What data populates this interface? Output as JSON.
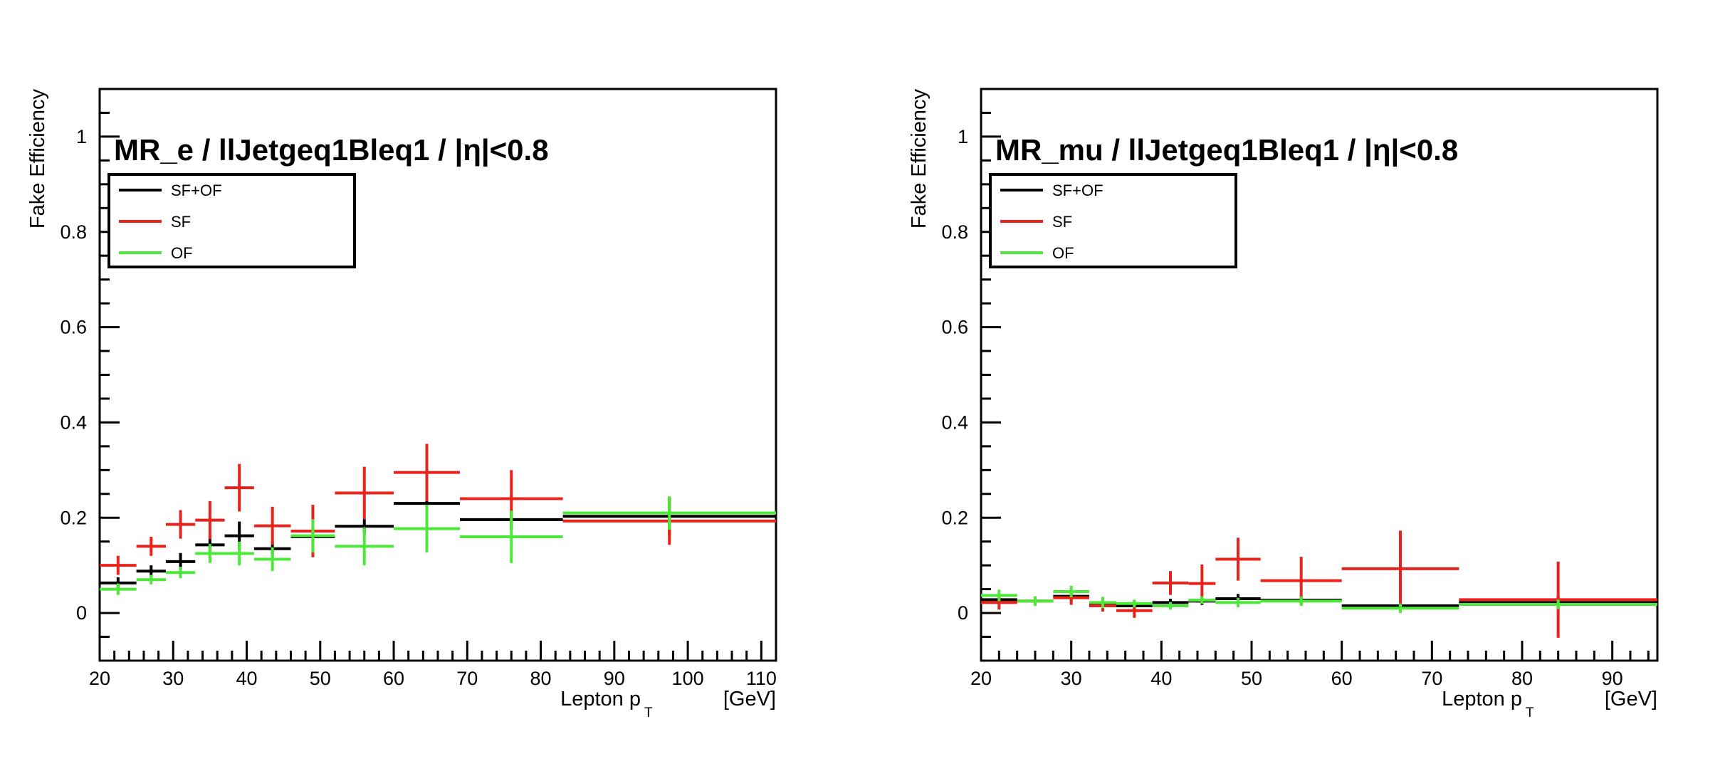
{
  "chart_data": [
    {
      "type": "histogram_errorbars",
      "title": "MR_e / llJetgeq1Bleq1 / |η|<0.8",
      "xlabel_main": "Lepton p",
      "xlabel_sub": "T",
      "xlabel_unit": "[GeV]",
      "ylabel": "Fake Efficiency",
      "xlim": [
        20,
        112
      ],
      "ylim": [
        -0.1,
        1.1
      ],
      "x_ticks": [
        20,
        30,
        40,
        50,
        60,
        70,
        80,
        90,
        100,
        110
      ],
      "x_tick_labels": [
        "20",
        "30",
        "40",
        "50",
        "60",
        "70",
        "80",
        "90",
        "100",
        "110"
      ],
      "y_ticks": [
        0,
        0.2,
        0.4,
        0.6,
        0.8,
        1
      ],
      "y_tick_labels": [
        "0",
        "0.2",
        "0.4",
        "0.6",
        "0.8",
        "1"
      ],
      "legend": {
        "placement": "top-left",
        "entries": [
          {
            "label": "SF+OF",
            "color": "#000000"
          },
          {
            "label": "SF",
            "color": "#e8231b"
          },
          {
            "label": "OF",
            "color": "#4ee83a"
          }
        ]
      },
      "series": [
        {
          "name": "SF+OF",
          "color": "#000000",
          "points": [
            [
              20,
              25,
              0.063,
              0.012
            ],
            [
              25,
              29,
              0.088,
              0.012
            ],
            [
              29,
              33,
              0.108,
              0.018
            ],
            [
              33,
              37,
              0.143,
              0.02
            ],
            [
              37,
              41,
              0.162,
              0.03
            ],
            [
              41,
              46,
              0.135,
              0.015
            ],
            [
              46,
              52,
              0.16,
              0.02
            ],
            [
              52,
              60,
              0.182,
              0.015
            ],
            [
              60,
              69,
              0.23,
              0.03
            ],
            [
              69,
              83,
              0.196,
              0.02
            ],
            [
              83,
              112,
              0.203,
              0.04
            ]
          ]
        },
        {
          "name": "SF",
          "color": "#e8231b",
          "points": [
            [
              20,
              25,
              0.1,
              0.02
            ],
            [
              25,
              29,
              0.14,
              0.02
            ],
            [
              29,
              33,
              0.186,
              0.03
            ],
            [
              33,
              37,
              0.195,
              0.04
            ],
            [
              37,
              41,
              0.263,
              0.05
            ],
            [
              41,
              46,
              0.183,
              0.04
            ],
            [
              46,
              52,
              0.172,
              0.055
            ],
            [
              52,
              60,
              0.252,
              0.055
            ],
            [
              60,
              69,
              0.295,
              0.06
            ],
            [
              69,
              83,
              0.24,
              0.06
            ],
            [
              83,
              112,
              0.193,
              0.05
            ]
          ]
        },
        {
          "name": "OF",
          "color": "#4ee83a",
          "points": [
            [
              20,
              25,
              0.05,
              0.012
            ],
            [
              25,
              29,
              0.07,
              0.01
            ],
            [
              29,
              33,
              0.085,
              0.012
            ],
            [
              33,
              37,
              0.125,
              0.02
            ],
            [
              37,
              41,
              0.125,
              0.025
            ],
            [
              41,
              46,
              0.113,
              0.025
            ],
            [
              46,
              52,
              0.162,
              0.035
            ],
            [
              52,
              60,
              0.14,
              0.04
            ],
            [
              60,
              69,
              0.177,
              0.05
            ],
            [
              69,
              83,
              0.16,
              0.055
            ],
            [
              83,
              112,
              0.21,
              0.035
            ]
          ]
        }
      ]
    },
    {
      "type": "histogram_errorbars",
      "title": "MR_mu / llJetgeq1Bleq1 / |η|<0.8",
      "xlabel_main": "Lepton p",
      "xlabel_sub": "T",
      "xlabel_unit": "[GeV]",
      "ylabel": "Fake Efficiency",
      "xlim": [
        20,
        95
      ],
      "ylim": [
        -0.1,
        1.1
      ],
      "x_ticks": [
        20,
        30,
        40,
        50,
        60,
        70,
        80,
        90
      ],
      "x_tick_labels": [
        "20",
        "30",
        "40",
        "50",
        "60",
        "70",
        "80",
        "90"
      ],
      "y_ticks": [
        0,
        0.2,
        0.4,
        0.6,
        0.8,
        1
      ],
      "y_tick_labels": [
        "0",
        "0.2",
        "0.4",
        "0.6",
        "0.8",
        "1"
      ],
      "legend": {
        "placement": "top-left",
        "entries": [
          {
            "label": "SF+OF",
            "color": "#000000"
          },
          {
            "label": "SF",
            "color": "#e8231b"
          },
          {
            "label": "OF",
            "color": "#4ee83a"
          }
        ]
      },
      "series": [
        {
          "name": "SF+OF",
          "color": "#000000",
          "points": [
            [
              20,
              24,
              0.028,
              0.01
            ],
            [
              24,
              28,
              0.025,
              0.008
            ],
            [
              28,
              32,
              0.035,
              0.01
            ],
            [
              32,
              35,
              0.02,
              0.008
            ],
            [
              35,
              39,
              0.015,
              0.008
            ],
            [
              39,
              43,
              0.022,
              0.008
            ],
            [
              43,
              46,
              0.025,
              0.008
            ],
            [
              46,
              51,
              0.03,
              0.01
            ],
            [
              51,
              60,
              0.027,
              0.01
            ],
            [
              60,
              73,
              0.015,
              0.01
            ],
            [
              73,
              95,
              0.022,
              0.015
            ]
          ]
        },
        {
          "name": "SF",
          "color": "#e8231b",
          "points": [
            [
              20,
              24,
              0.022,
              0.015
            ],
            [
              24,
              28,
              0.025,
              0.01
            ],
            [
              28,
              32,
              0.032,
              0.015
            ],
            [
              32,
              35,
              0.015,
              0.012
            ],
            [
              35,
              39,
              0.005,
              0.015
            ],
            [
              39,
              43,
              0.063,
              0.025
            ],
            [
              43,
              46,
              0.062,
              0.04
            ],
            [
              46,
              51,
              0.113,
              0.045
            ],
            [
              51,
              60,
              0.068,
              0.05
            ],
            [
              60,
              73,
              0.093,
              0.08
            ],
            [
              73,
              95,
              0.028,
              0.08
            ]
          ]
        },
        {
          "name": "OF",
          "color": "#4ee83a",
          "points": [
            [
              20,
              24,
              0.037,
              0.012
            ],
            [
              24,
              28,
              0.025,
              0.01
            ],
            [
              28,
              32,
              0.045,
              0.012
            ],
            [
              32,
              35,
              0.022,
              0.012
            ],
            [
              35,
              39,
              0.02,
              0.008
            ],
            [
              39,
              43,
              0.015,
              0.008
            ],
            [
              43,
              46,
              0.027,
              0.008
            ],
            [
              46,
              51,
              0.022,
              0.01
            ],
            [
              51,
              60,
              0.025,
              0.01
            ],
            [
              60,
              73,
              0.01,
              0.01
            ],
            [
              73,
              95,
              0.018,
              0.01
            ]
          ]
        }
      ]
    }
  ]
}
